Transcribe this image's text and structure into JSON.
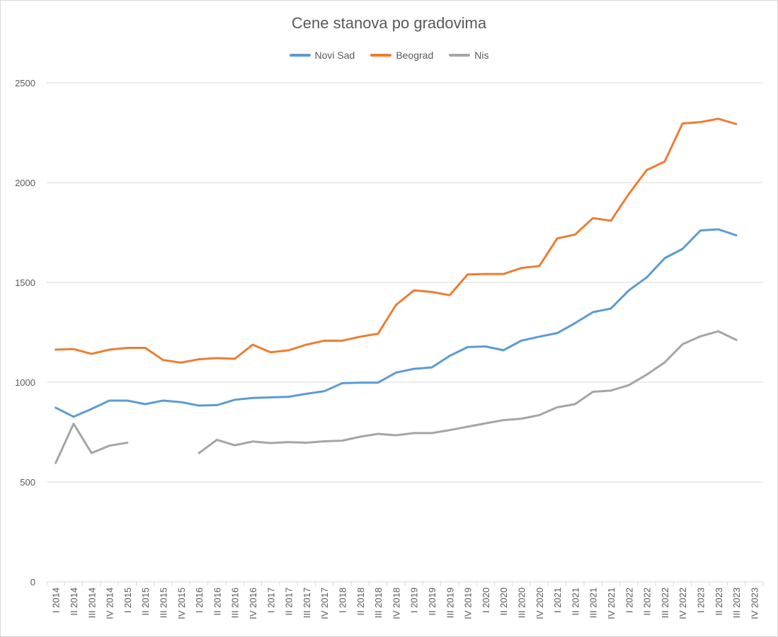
{
  "chart_data": {
    "type": "line",
    "title": "Cene stanova po gradovima",
    "xlabel": "",
    "ylabel": "",
    "ylim": [
      0,
      2500
    ],
    "yticks": [
      0,
      500,
      1000,
      1500,
      2000,
      2500
    ],
    "grid": true,
    "legend_position": "top-center",
    "categories": [
      "I 2014",
      "II 2014",
      "III 2014",
      "IV 2014",
      "I 2015",
      "II 2015",
      "III 2015",
      "IV 2015",
      "I 2016",
      "II 2016",
      "III 2016",
      "IV 2016",
      "I 2017",
      "II 2017",
      "III 2017",
      "IV 2017",
      "I 2018",
      "II 2018",
      "III 2018",
      "IV 2018",
      "I 2019",
      "II 2019",
      "III 2019",
      "IV 2019",
      "I 2020",
      "II 2020",
      "III 2020",
      "IV 2020",
      "I 2021",
      "II 2021",
      "III 2021",
      "IV 2021",
      "I 2022",
      "II 2022",
      "III 2022",
      "IV 2022",
      "I 2023",
      "II 2023",
      "III 2023",
      "IV 2023"
    ],
    "series": [
      {
        "name": "Novi Sad",
        "color": "#5b9bd5",
        "values": [
          872,
          827,
          866,
          908,
          908,
          890,
          908,
          900,
          883,
          885,
          912,
          921,
          924,
          927,
          942,
          955,
          995,
          998,
          998,
          1048,
          1067,
          1074,
          1132,
          1176,
          1179,
          1160,
          1208,
          1228,
          1246,
          1296,
          1351,
          1369,
          1460,
          1525,
          1621,
          1668,
          1760,
          1766,
          1736,
          null
        ]
      },
      {
        "name": "Beograd",
        "color": "#ed7d31",
        "values": [
          1163,
          1166,
          1142,
          1163,
          1172,
          1172,
          1111,
          1098,
          1115,
          1121,
          1117,
          1188,
          1150,
          1160,
          1188,
          1208,
          1208,
          1228,
          1243,
          1387,
          1460,
          1452,
          1436,
          1540,
          1542,
          1542,
          1572,
          1582,
          1720,
          1740,
          1822,
          1809,
          1943,
          2063,
          2105,
          2296,
          2303,
          2320,
          2293,
          null
        ]
      },
      {
        "name": "Nis",
        "color": "#a5a5a5",
        "values": [
          595,
          792,
          645,
          682,
          697,
          null,
          null,
          null,
          645,
          711,
          684,
          703,
          695,
          700,
          697,
          704,
          707,
          727,
          741,
          734,
          745,
          745,
          760,
          777,
          794,
          810,
          817,
          835,
          874,
          890,
          952,
          958,
          985,
          1038,
          1099,
          1190,
          1230,
          1255,
          1212,
          null
        ]
      }
    ]
  }
}
